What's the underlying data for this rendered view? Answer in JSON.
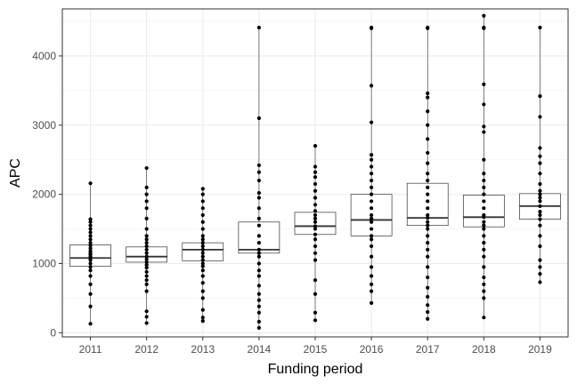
{
  "chart_data": {
    "type": "box",
    "xlabel": "Funding period",
    "ylabel": "APC",
    "ylim": [
      -60,
      4680
    ],
    "yticks": [
      0,
      1000,
      2000,
      3000,
      4000
    ],
    "tick_labels": [
      "0",
      "1000",
      "2000",
      "3000",
      "4000"
    ],
    "grid": true,
    "categories": [
      "2011",
      "2012",
      "2013",
      "2014",
      "2015",
      "2016",
      "2017",
      "2018",
      "2019"
    ],
    "boxes": [
      {
        "q1": 960,
        "median": 1080,
        "q3": 1270
      },
      {
        "q1": 1020,
        "median": 1100,
        "q3": 1240
      },
      {
        "q1": 1040,
        "median": 1200,
        "q3": 1300
      },
      {
        "q1": 1150,
        "median": 1200,
        "q3": 1600
      },
      {
        "q1": 1420,
        "median": 1540,
        "q3": 1740
      },
      {
        "q1": 1400,
        "median": 1630,
        "q3": 2000
      },
      {
        "q1": 1550,
        "median": 1660,
        "q3": 2160
      },
      {
        "q1": 1530,
        "median": 1670,
        "q3": 1990
      },
      {
        "q1": 1640,
        "median": 1830,
        "q3": 2010
      }
    ],
    "points": [
      [
        130,
        380,
        560,
        700,
        820,
        900,
        950,
        1000,
        1050,
        1080,
        1100,
        1130,
        1150,
        1180,
        1220,
        1260,
        1300,
        1350,
        1400,
        1450,
        1500,
        1550,
        1600,
        1640,
        2160
      ],
      [
        140,
        230,
        310,
        600,
        700,
        760,
        820,
        880,
        940,
        980,
        1020,
        1060,
        1100,
        1150,
        1200,
        1250,
        1300,
        1350,
        1400,
        1500,
        1650,
        1800,
        1900,
        2000,
        2100,
        2380
      ],
      [
        170,
        220,
        330,
        500,
        600,
        720,
        820,
        900,
        960,
        1000,
        1050,
        1100,
        1150,
        1200,
        1250,
        1300,
        1350,
        1400,
        1500,
        1600,
        1700,
        1800,
        1900,
        2000,
        2080
      ],
      [
        70,
        160,
        290,
        380,
        470,
        560,
        680,
        820,
        900,
        1000,
        1100,
        1150,
        1200,
        1300,
        1400,
        1550,
        1650,
        1800,
        1950,
        2020,
        2200,
        2320,
        2420,
        3100,
        4410
      ],
      [
        180,
        290,
        560,
        760,
        1050,
        1150,
        1250,
        1350,
        1420,
        1500,
        1540,
        1600,
        1650,
        1700,
        1760,
        1850,
        1950,
        2050,
        2150,
        2250,
        2320,
        2400,
        2700
      ],
      [
        430,
        600,
        700,
        820,
        950,
        1100,
        1250,
        1350,
        1400,
        1500,
        1600,
        1650,
        1700,
        1800,
        1900,
        2000,
        2100,
        2200,
        2300,
        2400,
        2500,
        2570,
        3040,
        3570,
        4400,
        4410
      ],
      [
        200,
        300,
        400,
        520,
        650,
        800,
        950,
        1100,
        1200,
        1300,
        1400,
        1500,
        1550,
        1600,
        1660,
        1700,
        1800,
        1900,
        2000,
        2100,
        2200,
        2300,
        2450,
        2600,
        2800,
        3000,
        3200,
        3400,
        3460,
        4400,
        4410
      ],
      [
        220,
        500,
        600,
        700,
        800,
        950,
        1100,
        1200,
        1300,
        1400,
        1500,
        1550,
        1600,
        1670,
        1700,
        1800,
        1900,
        2000,
        2100,
        2200,
        2300,
        2500,
        2900,
        2980,
        3300,
        3590,
        4400,
        4410,
        4580
      ],
      [
        730,
        850,
        950,
        1050,
        1250,
        1400,
        1550,
        1640,
        1700,
        1750,
        1830,
        1900,
        1950,
        2000,
        2050,
        2150,
        2300,
        2450,
        2550,
        2670,
        3120,
        3420,
        4410
      ]
    ]
  }
}
